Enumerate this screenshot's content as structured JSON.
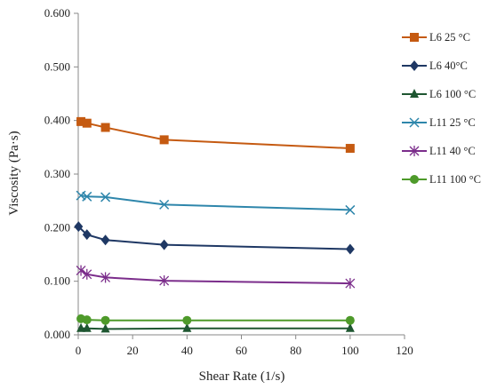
{
  "chart_data": {
    "type": "line",
    "xlabel": "Shear Rate (1/s)",
    "ylabel": "Viscosity (Pa·s)",
    "xlim": [
      0,
      120
    ],
    "ylim": [
      0,
      0.6
    ],
    "xticks": [
      0,
      20,
      40,
      60,
      80,
      100,
      120
    ],
    "yticks": [
      "0.000",
      "0.100",
      "0.200",
      "0.300",
      "0.400",
      "0.500",
      "0.600"
    ],
    "grid": false,
    "legend_position": "right",
    "series": [
      {
        "name": "L6 25 °C",
        "color": "#c55a11",
        "marker": "square",
        "x": [
          1,
          3.2,
          10,
          31.6,
          100
        ],
        "y": [
          0.398,
          0.395,
          0.387,
          0.364,
          0.348
        ]
      },
      {
        "name": "L6 40°C",
        "color": "#1f3864",
        "marker": "diamond",
        "x": [
          0.1,
          3.2,
          10,
          31.6,
          100
        ],
        "y": [
          0.202,
          0.187,
          0.177,
          0.168,
          0.16
        ]
      },
      {
        "name": "L6 100 °C",
        "color": "#1e5631",
        "marker": "triangle",
        "x": [
          1,
          3.2,
          10,
          40,
          100
        ],
        "y": [
          0.012,
          0.012,
          0.011,
          0.012,
          0.012
        ]
      },
      {
        "name": "L11 25 °C",
        "color": "#2e86ab",
        "marker": "x",
        "x": [
          1,
          3.2,
          10,
          31.6,
          100
        ],
        "y": [
          0.26,
          0.258,
          0.257,
          0.243,
          0.233
        ]
      },
      {
        "name": "L11 40 °C",
        "color": "#7b2d8b",
        "marker": "asterisk",
        "x": [
          1,
          3.2,
          10,
          31.6,
          100
        ],
        "y": [
          0.12,
          0.113,
          0.107,
          0.101,
          0.096
        ]
      },
      {
        "name": "L11 100 °C",
        "color": "#4e9a2a",
        "marker": "circle",
        "x": [
          1,
          3.2,
          10,
          40,
          100
        ],
        "y": [
          0.03,
          0.028,
          0.027,
          0.027,
          0.027
        ]
      }
    ]
  }
}
